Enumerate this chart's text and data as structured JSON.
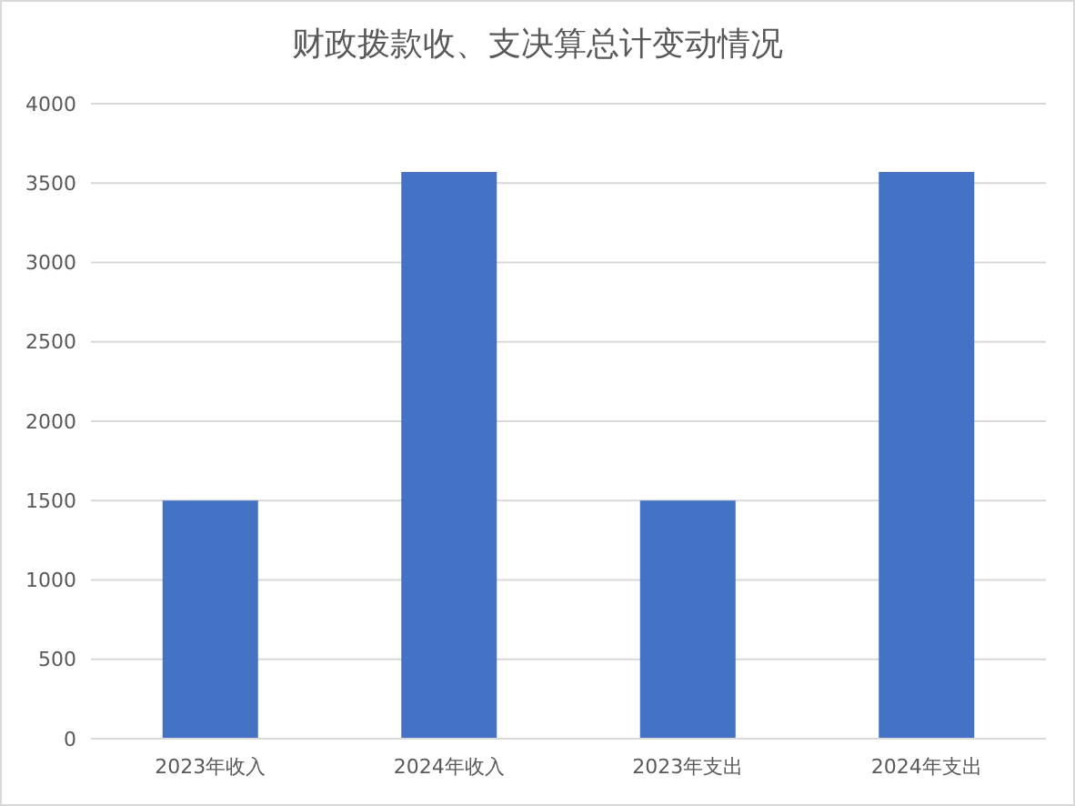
{
  "chart_data": {
    "type": "bar",
    "title": "财政拨款收、支决算总计变动情况",
    "categories": [
      "2023年收入",
      "2024年收入",
      "2023年支出",
      "2024年支出"
    ],
    "values": [
      1500,
      3570,
      1500,
      3570
    ],
    "color": "#4472c4",
    "ylim": [
      0,
      4000
    ],
    "yticks": [
      0,
      500,
      1000,
      1500,
      2000,
      2500,
      3000,
      3500,
      4000
    ],
    "grid": "y"
  }
}
